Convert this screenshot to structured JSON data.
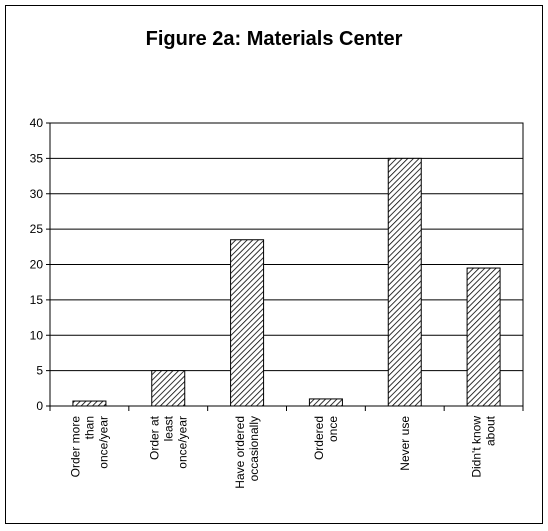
{
  "chart_data": {
    "type": "bar",
    "title": "Figure 2a: Materials Center",
    "categories": [
      "Order more\nthan\nonce/year",
      "Order at\nleast\nonce/year",
      "Have ordered\noccasionally",
      "Ordered\nonce",
      "Never use",
      "Didn't know\nabout"
    ],
    "values": [
      0.7,
      5,
      23.5,
      1,
      35,
      19.5
    ],
    "color": "#000000",
    "ylim": [
      0,
      40
    ],
    "yticks": [
      0,
      5,
      10,
      15,
      20,
      25,
      30,
      35,
      40
    ],
    "grid": true
  }
}
